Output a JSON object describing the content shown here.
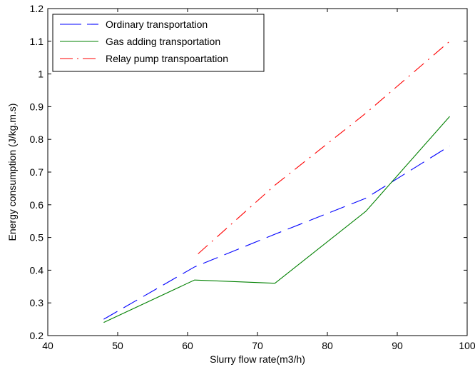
{
  "chart_data": {
    "type": "line",
    "xlabel": "Slurry flow rate(m3/h)",
    "ylabel": "Energy consumption (J/kg.m.s)",
    "xlim": [
      40,
      100
    ],
    "ylim": [
      0.2,
      1.2
    ],
    "xticks": [
      40,
      50,
      60,
      70,
      80,
      90,
      100
    ],
    "yticks": [
      0.2,
      0.3,
      0.4,
      0.5,
      0.6,
      0.7,
      0.8,
      0.9,
      1.0,
      1.1,
      1.2
    ],
    "xtick_labels": [
      "40",
      "50",
      "60",
      "70",
      "80",
      "90",
      "100"
    ],
    "ytick_labels": [
      "0.2",
      "0.3",
      "0.4",
      "0.5",
      "0.6",
      "0.7",
      "0.8",
      "0.9",
      "1",
      "1.1",
      "1.2"
    ],
    "grid": false,
    "legend_position": "top-left",
    "series": [
      {
        "name": "Ordinary transportation",
        "color": "#0000ff",
        "line_style": "long-dash",
        "x": [
          48,
          61,
          72.5,
          85.5,
          97.5
        ],
        "y": [
          0.25,
          0.41,
          0.51,
          0.62,
          0.78
        ]
      },
      {
        "name": "Gas adding transportation",
        "color": "#008000",
        "line_style": "solid",
        "x": [
          48,
          61,
          72.5,
          85.5,
          97.5
        ],
        "y": [
          0.24,
          0.37,
          0.36,
          0.58,
          0.87
        ]
      },
      {
        "name": "Relay pump transpoartation",
        "color": "#ff0000",
        "line_style": "dash-dot",
        "x": [
          61.5,
          72.5,
          85.5,
          97.5
        ],
        "y": [
          0.45,
          0.66,
          0.88,
          1.1
        ]
      }
    ]
  }
}
